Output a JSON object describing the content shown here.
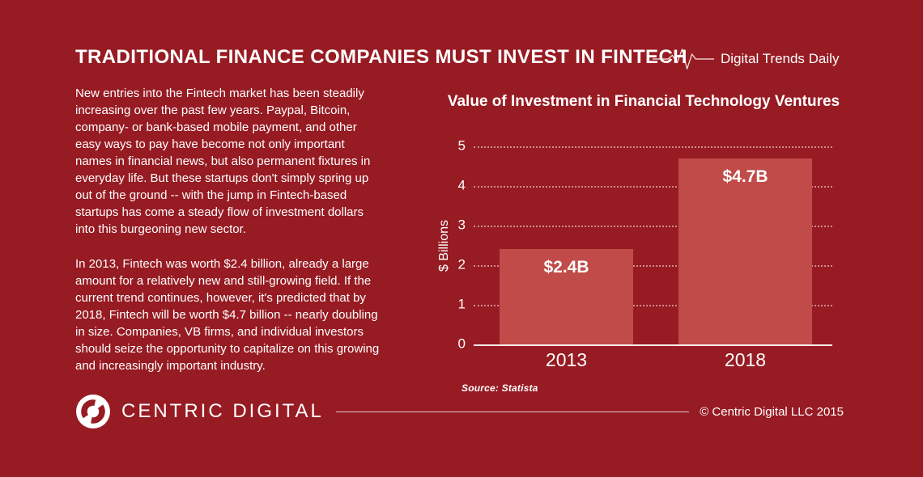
{
  "colors": {
    "background": "#971B23",
    "bar_fill": "#C04B48",
    "text_color": "#FFFFFF"
  },
  "header": {
    "title": "TRADITIONAL FINANCE COMPANIES MUST INVEST IN FINTECH",
    "brand": "Digital Trends Daily"
  },
  "article": {
    "paragraph1": "New entries into the Fintech market has been steadily increasing over the past few years. Paypal, Bitcoin, company- or bank-based mobile payment, and other easy ways to pay have become not only important names in financial news, but also permanent fixtures in everyday life. But these startups don't simply spring up out of the ground -- with the jump in Fintech-based startups has come a steady flow of investment dollars into this burgeoning new sector.",
    "paragraph2": "In 2013, Fintech was worth $2.4 billion, already a large amount for a relatively new and still-growing field. If the current trend continues, however, it's predicted that by 2018, Fintech will be worth $4.7 billion -- nearly doubling in size. Companies, VB firms, and individual investors should seize the opportunity to capitalize on this growing and increasingly important industry."
  },
  "chart": {
    "yticks": [
      "5",
      "4",
      "3",
      "2",
      "1",
      "0"
    ]
  },
  "chart_data": {
    "type": "bar",
    "title": "Value of Investment in Financial Technology Ventures",
    "categories": [
      "2013",
      "2018"
    ],
    "values": [
      2.4,
      4.7
    ],
    "data_labels": [
      "$2.4B",
      "$4.7B"
    ],
    "xlabel": "",
    "ylabel": "$ Billions",
    "ylim": [
      0,
      5
    ],
    "yticks": [
      0,
      1,
      2,
      3,
      4,
      5
    ],
    "grid": "horizontal-dotted",
    "legend": "none",
    "source": "Source: Statista"
  },
  "footer": {
    "logo_text": "CENTRIC DIGITAL",
    "copyright": "© Centric Digital LLC 2015"
  }
}
